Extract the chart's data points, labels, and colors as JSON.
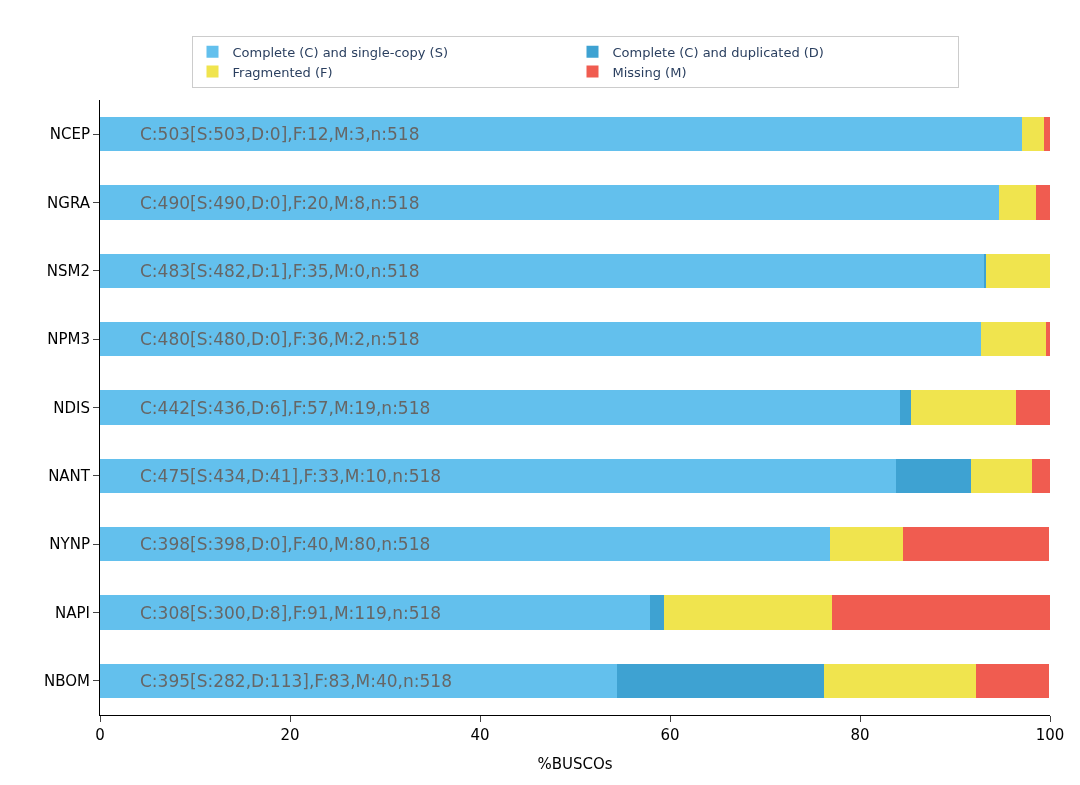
{
  "chart_data": {
    "type": "bar",
    "orientation": "horizontal",
    "stacked": true,
    "xlabel": "%BUSCOs",
    "categories": [
      "NCEP",
      "NGRA",
      "NSM2",
      "NPM3",
      "NDIS",
      "NANT",
      "NYNP",
      "NAPI",
      "NBOM"
    ],
    "series": [
      {
        "name": "Complete (C) and single-copy (S)",
        "color": "#63c0ed",
        "values": [
          97.1,
          94.6,
          93.1,
          92.7,
          84.2,
          83.8,
          76.8,
          57.9,
          54.4
        ]
      },
      {
        "name": "Complete (C) and duplicated (D)",
        "color": "#3ea2d2",
        "values": [
          0,
          0,
          0.2,
          0,
          1.2,
          7.9,
          0,
          1.5,
          21.8
        ]
      },
      {
        "name": "Fragmented (F)",
        "color": "#f0e44e",
        "values": [
          2.3,
          3.9,
          6.8,
          6.9,
          11.0,
          6.4,
          7.7,
          17.6,
          16.0
        ]
      },
      {
        "name": "Missing (M)",
        "color": "#f05c50",
        "values": [
          0.6,
          1.5,
          0,
          0.4,
          3.7,
          1.9,
          15.4,
          23.0,
          7.7
        ]
      }
    ],
    "annotations": [
      "C:503[S:503,D:0],F:12,M:3,n:518",
      "C:490[S:490,D:0],F:20,M:8,n:518",
      "C:483[S:482,D:1],F:35,M:0,n:518",
      "C:480[S:480,D:0],F:36,M:2,n:518",
      "C:442[S:436,D:6],F:57,M:19,n:518",
      "C:475[S:434,D:41],F:33,M:10,n:518",
      "C:398[S:398,D:0],F:40,M:80,n:518",
      "C:308[S:300,D:8],F:91,M:119,n:518",
      "C:395[S:282,D:113],F:83,M:40,n:518"
    ],
    "xlim": [
      0,
      100
    ],
    "xticks": [
      0,
      20,
      40,
      60,
      80,
      100
    ],
    "legend": "top"
  }
}
